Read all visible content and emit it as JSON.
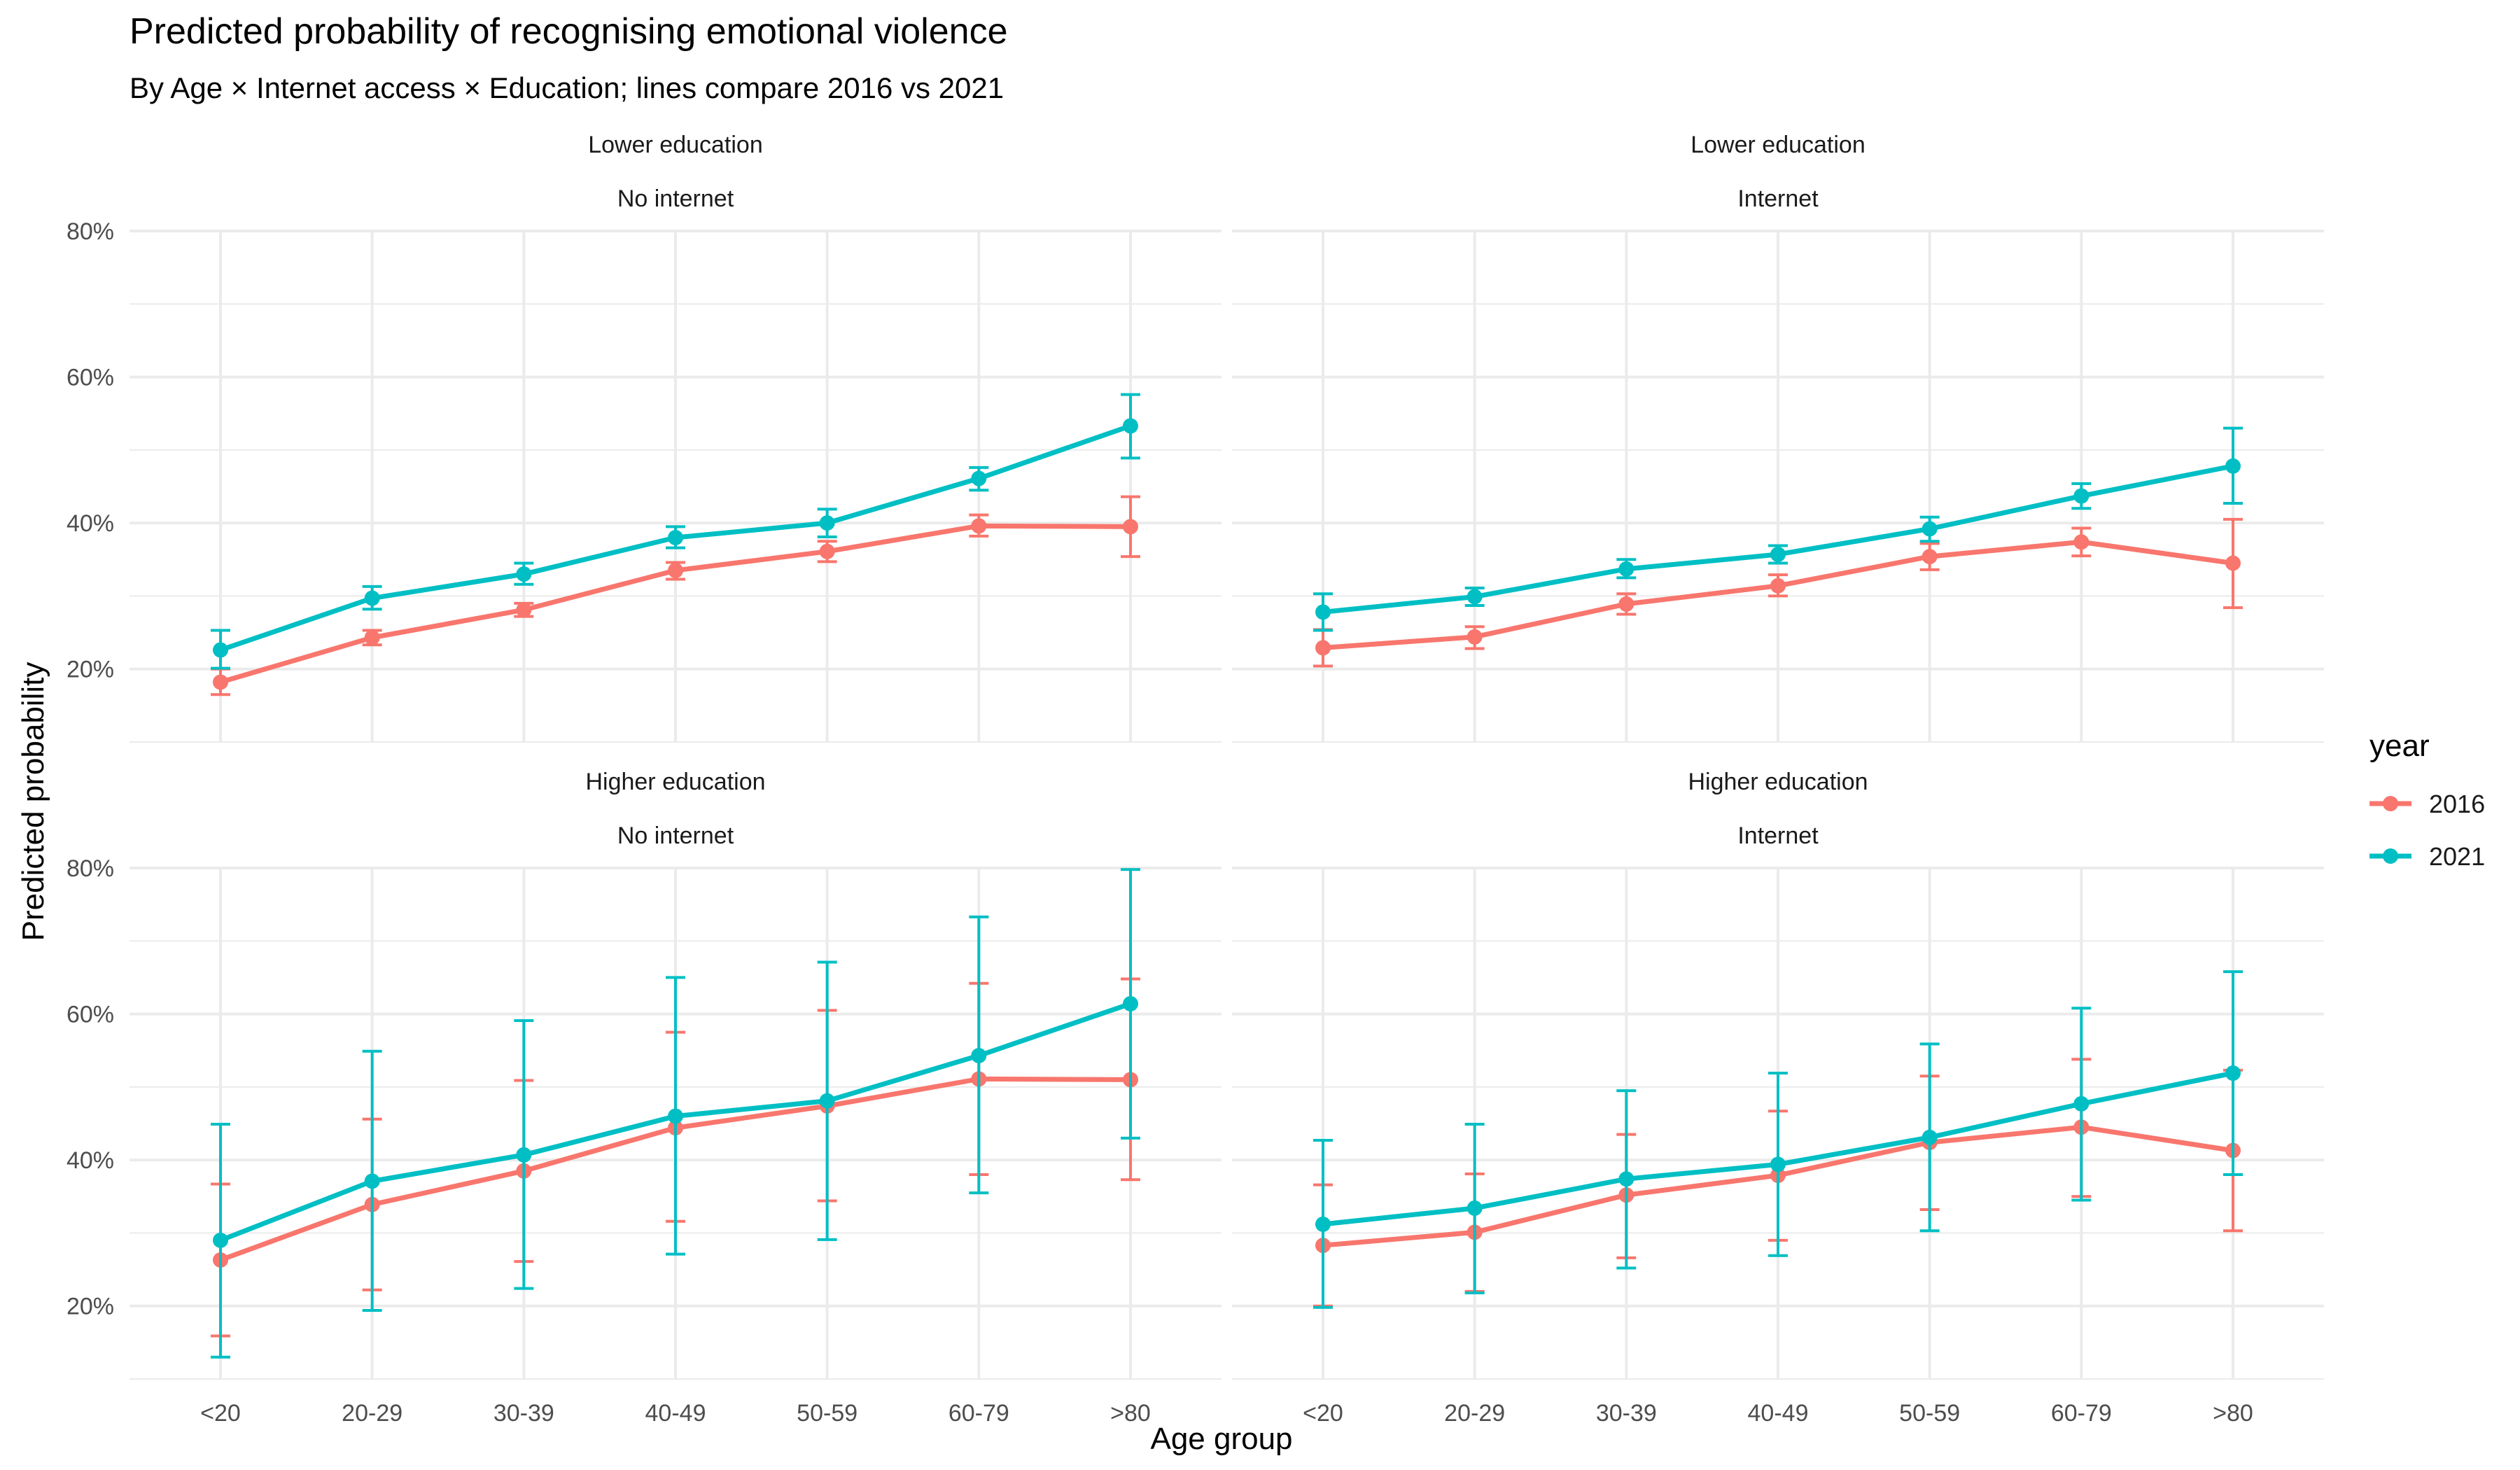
{
  "chart_data": {
    "type": "line",
    "title": "Predicted probability of recognising emotional violence",
    "subtitle": "By Age × Internet access × Education; lines compare 2016 vs 2021",
    "xlabel": "Age group",
    "ylabel": "Predicted probability",
    "categories": [
      "<20",
      "20-29",
      "30-39",
      "40-49",
      "50-59",
      "60-79",
      ">80"
    ],
    "ylim": [
      0.1,
      0.8
    ],
    "yticks": [
      0.2,
      0.4,
      0.6,
      0.8
    ],
    "ytick_labels": [
      "20%",
      "40%",
      "60%",
      "80%"
    ],
    "grid": true,
    "legend": {
      "title": "year",
      "position": "right",
      "entries": [
        {
          "label": "2016",
          "color": "#F8766D"
        },
        {
          "label": "2021",
          "color": "#00BFC4"
        }
      ]
    },
    "panels": [
      {
        "strip_top": "Lower education",
        "strip_bottom": "No internet",
        "series": [
          {
            "name": "2016",
            "color": "#F8766D",
            "values": [
              0.182,
              0.243,
              0.281,
              0.335,
              0.361,
              0.396,
              0.395
            ],
            "lower": [
              0.165,
              0.233,
              0.272,
              0.323,
              0.347,
              0.382,
              0.354
            ],
            "upper": [
              0.2,
              0.253,
              0.29,
              0.346,
              0.375,
              0.411,
              0.436
            ]
          },
          {
            "name": "2021",
            "color": "#00BFC4",
            "values": [
              0.226,
              0.297,
              0.33,
              0.38,
              0.4,
              0.461,
              0.533
            ],
            "lower": [
              0.201,
              0.282,
              0.316,
              0.366,
              0.381,
              0.445,
              0.489
            ],
            "upper": [
              0.253,
              0.313,
              0.345,
              0.395,
              0.419,
              0.476,
              0.576
            ]
          }
        ]
      },
      {
        "strip_top": "Lower education",
        "strip_bottom": "Internet",
        "series": [
          {
            "name": "2016",
            "color": "#F8766D",
            "values": [
              0.229,
              0.244,
              0.289,
              0.314,
              0.354,
              0.374,
              0.345
            ],
            "lower": [
              0.204,
              0.228,
              0.275,
              0.3,
              0.336,
              0.355,
              0.284
            ],
            "upper": [
              0.254,
              0.258,
              0.303,
              0.329,
              0.372,
              0.393,
              0.405
            ]
          },
          {
            "name": "2021",
            "color": "#00BFC4",
            "values": [
              0.278,
              0.299,
              0.337,
              0.357,
              0.392,
              0.437,
              0.478
            ],
            "lower": [
              0.253,
              0.287,
              0.325,
              0.345,
              0.375,
              0.42,
              0.427
            ],
            "upper": [
              0.303,
              0.311,
              0.35,
              0.369,
              0.408,
              0.454,
              0.53
            ]
          }
        ]
      },
      {
        "strip_top": "Higher education",
        "strip_bottom": "No internet",
        "series": [
          {
            "name": "2016",
            "color": "#F8766D",
            "values": [
              0.263,
              0.339,
              0.385,
              0.444,
              0.474,
              0.511,
              0.51
            ],
            "lower": [
              0.159,
              0.222,
              0.261,
              0.316,
              0.344,
              0.38,
              0.373
            ],
            "upper": [
              0.367,
              0.456,
              0.509,
              0.575,
              0.605,
              0.642,
              0.648
            ]
          },
          {
            "name": "2021",
            "color": "#00BFC4",
            "values": [
              0.29,
              0.371,
              0.407,
              0.46,
              0.481,
              0.543,
              0.614
            ],
            "lower": [
              0.13,
              0.194,
              0.224,
              0.271,
              0.291,
              0.355,
              0.43
            ],
            "upper": [
              0.449,
              0.549,
              0.591,
              0.65,
              0.671,
              0.733,
              0.798
            ]
          }
        ]
      },
      {
        "strip_top": "Higher education",
        "strip_bottom": "Internet",
        "series": [
          {
            "name": "2016",
            "color": "#F8766D",
            "values": [
              0.283,
              0.301,
              0.352,
              0.379,
              0.424,
              0.445,
              0.413
            ],
            "lower": [
              0.2,
              0.22,
              0.266,
              0.29,
              0.332,
              0.35,
              0.303
            ],
            "upper": [
              0.366,
              0.381,
              0.435,
              0.467,
              0.515,
              0.538,
              0.523
            ]
          },
          {
            "name": "2021",
            "color": "#00BFC4",
            "values": [
              0.312,
              0.334,
              0.374,
              0.394,
              0.431,
              0.477,
              0.519
            ],
            "lower": [
              0.198,
              0.218,
              0.252,
              0.269,
              0.303,
              0.345,
              0.38
            ],
            "upper": [
              0.427,
              0.449,
              0.495,
              0.519,
              0.559,
              0.608,
              0.658
            ]
          }
        ]
      }
    ]
  }
}
